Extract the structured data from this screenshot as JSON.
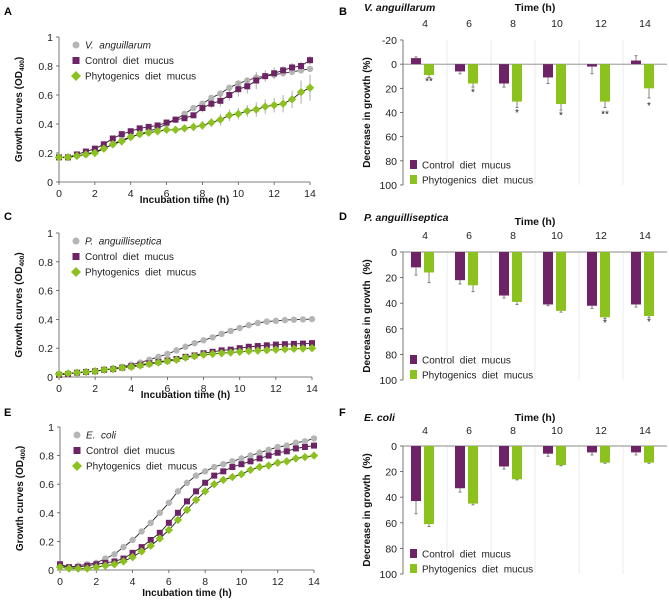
{
  "colors": {
    "pathogen": "#b5b5b5",
    "control": "#6e2366",
    "phytogenics": "#8cc21e",
    "axis": "#555555",
    "line": "#222222",
    "error": "#999999",
    "grid": "#e6e6e6"
  },
  "chart_data": [
    {
      "panel": "A",
      "type": "line",
      "title": "",
      "xlabel": "Incubation time (h)",
      "ylabel": "Growth curves (OD400)",
      "ylabel_main": "Growth curves (OD",
      "ylabel_sub": "400",
      "ylabel_end": ")",
      "xlim": [
        0,
        14
      ],
      "ylim": [
        0,
        1
      ],
      "xticks": [
        0,
        2,
        4,
        6,
        8,
        10,
        12,
        14
      ],
      "yticks": [
        0,
        0.2,
        0.4,
        0.6,
        0.8,
        1
      ],
      "ytick_labels": [
        "0",
        "0.2",
        "0.4",
        "0.6",
        "0.8",
        "1"
      ],
      "legend_position": "top-left",
      "x": [
        0,
        0.5,
        1,
        1.5,
        2,
        2.5,
        3,
        3.5,
        4,
        4.5,
        5,
        5.5,
        6,
        6.5,
        7,
        7.5,
        8,
        8.5,
        9,
        9.5,
        10,
        10.5,
        11,
        11.5,
        12,
        12.5,
        13,
        13.5,
        14
      ],
      "series": [
        {
          "name": "V.  anguillarum",
          "italic": true,
          "marker": "circle",
          "key": "pathogen",
          "values": [
            0.17,
            0.17,
            0.18,
            0.19,
            0.21,
            0.23,
            0.26,
            0.29,
            0.31,
            0.33,
            0.35,
            0.37,
            0.4,
            0.43,
            0.47,
            0.51,
            0.54,
            0.58,
            0.61,
            0.65,
            0.68,
            0.7,
            0.72,
            0.73,
            0.74,
            0.75,
            0.76,
            0.77,
            0.78
          ],
          "errors": [
            0,
            0,
            0,
            0,
            0,
            0,
            0,
            0,
            0,
            0,
            0,
            0,
            0,
            0,
            0,
            0,
            0,
            0,
            0,
            0,
            0,
            0,
            0,
            0,
            0,
            0,
            0,
            0,
            0
          ]
        },
        {
          "name": "Control  diet  mucus",
          "italic": false,
          "marker": "square",
          "key": "control",
          "values": [
            0.17,
            0.17,
            0.19,
            0.21,
            0.23,
            0.26,
            0.3,
            0.33,
            0.35,
            0.37,
            0.38,
            0.39,
            0.41,
            0.43,
            0.44,
            0.46,
            0.51,
            0.54,
            0.56,
            0.6,
            0.64,
            0.66,
            0.7,
            0.73,
            0.75,
            0.77,
            0.79,
            0.8,
            0.84
          ],
          "errors": [
            0,
            0,
            0,
            0,
            0,
            0,
            0,
            0,
            0,
            0,
            0,
            0,
            0,
            0,
            0,
            0.02,
            0.03,
            0.03,
            0.04,
            0.04,
            0.05,
            0.05,
            0.06,
            0.04,
            0.04,
            0.03,
            0.03,
            0.03,
            0.03
          ]
        },
        {
          "name": "Phytogenics  diet  mucus",
          "italic": false,
          "marker": "diamond",
          "key": "phytogenics",
          "values": [
            0.17,
            0.17,
            0.18,
            0.19,
            0.2,
            0.23,
            0.26,
            0.28,
            0.31,
            0.33,
            0.34,
            0.35,
            0.36,
            0.36,
            0.37,
            0.38,
            0.39,
            0.41,
            0.43,
            0.46,
            0.47,
            0.49,
            0.5,
            0.52,
            0.53,
            0.54,
            0.57,
            0.62,
            0.65
          ],
          "errors": [
            0,
            0,
            0,
            0,
            0,
            0,
            0,
            0,
            0,
            0,
            0.01,
            0.01,
            0.02,
            0.02,
            0.02,
            0.03,
            0.03,
            0.03,
            0.04,
            0.04,
            0.04,
            0.04,
            0.05,
            0.05,
            0.05,
            0.06,
            0.06,
            0.08,
            0.09
          ]
        }
      ]
    },
    {
      "panel": "B",
      "type": "bar",
      "subtitle": "V. anguillarum",
      "title": "Time (h)",
      "ylabel": "Decrease in growth (%)",
      "categories": [
        "4",
        "6",
        "8",
        "10",
        "12",
        "14"
      ],
      "ylim": [
        -20,
        100
      ],
      "yticks": [
        -20,
        0,
        20,
        40,
        60,
        80,
        100
      ],
      "ytick_labels": [
        "-20",
        "0",
        "20",
        "40",
        "60",
        "80",
        "100"
      ],
      "legend_position": "bottom-left",
      "series": [
        {
          "name": "Control  diet  mucus",
          "key": "control",
          "values": [
            -5,
            6,
            16,
            11,
            2,
            -3
          ],
          "errors": [
            1,
            2,
            3,
            5,
            6,
            4
          ]
        },
        {
          "name": "Phytogenics  diet  mucus",
          "key": "phytogenics",
          "values": [
            9,
            16,
            31,
            33,
            31,
            20
          ],
          "errors": [
            2,
            3,
            5,
            5,
            5,
            8
          ]
        }
      ],
      "significance": [
        "**",
        "*",
        "*",
        "*",
        "**",
        "*"
      ],
      "significance_values": [
        17,
        26,
        43,
        45,
        44,
        37
      ]
    },
    {
      "panel": "C",
      "type": "line",
      "xlabel": "Incubation time (h)",
      "ylabel": "Growth curves (OD400)",
      "ylabel_main": "Growth curves (OD",
      "ylabel_sub": "400",
      "ylabel_end": ")",
      "xlim": [
        0,
        14
      ],
      "ylim": [
        0,
        1
      ],
      "xticks": [
        0,
        2,
        4,
        6,
        8,
        10,
        12,
        14
      ],
      "yticks": [
        0,
        0.2,
        0.4,
        0.6,
        0.8,
        1
      ],
      "ytick_labels": [
        "0",
        "0.2",
        "0.4",
        "0.6",
        "0.8",
        "1"
      ],
      "legend_position": "top-left",
      "x": [
        0,
        0.5,
        1,
        1.5,
        2,
        2.5,
        3,
        3.5,
        4,
        4.5,
        5,
        5.5,
        6,
        6.5,
        7,
        7.5,
        8,
        8.5,
        9,
        9.5,
        10,
        10.5,
        11,
        11.5,
        12,
        12.5,
        13,
        13.5,
        14
      ],
      "series": [
        {
          "name": "P.  anguilliseptica",
          "italic": true,
          "marker": "circle",
          "key": "pathogen",
          "values": [
            0.02,
            0.025,
            0.03,
            0.035,
            0.04,
            0.05,
            0.06,
            0.07,
            0.085,
            0.1,
            0.12,
            0.14,
            0.16,
            0.185,
            0.21,
            0.235,
            0.255,
            0.275,
            0.3,
            0.32,
            0.34,
            0.36,
            0.375,
            0.385,
            0.39,
            0.395,
            0.398,
            0.4,
            0.402
          ],
          "errors": [
            0,
            0,
            0,
            0,
            0,
            0,
            0,
            0,
            0,
            0,
            0,
            0,
            0,
            0,
            0,
            0,
            0,
            0,
            0,
            0,
            0,
            0,
            0,
            0,
            0,
            0,
            0,
            0,
            0
          ]
        },
        {
          "name": "Control  diet  mucus",
          "italic": false,
          "marker": "square",
          "key": "control",
          "values": [
            0.015,
            0.02,
            0.03,
            0.035,
            0.04,
            0.05,
            0.055,
            0.065,
            0.075,
            0.085,
            0.095,
            0.105,
            0.115,
            0.125,
            0.14,
            0.15,
            0.165,
            0.175,
            0.185,
            0.19,
            0.2,
            0.21,
            0.215,
            0.22,
            0.225,
            0.228,
            0.23,
            0.232,
            0.235
          ],
          "errors": [
            0,
            0,
            0,
            0,
            0,
            0,
            0,
            0,
            0,
            0,
            0,
            0,
            0,
            0,
            0,
            0,
            0,
            0,
            0,
            0,
            0,
            0,
            0,
            0,
            0,
            0,
            0,
            0,
            0
          ]
        },
        {
          "name": "Phytogenics  diet  mucus",
          "italic": false,
          "marker": "diamond",
          "key": "phytogenics",
          "values": [
            0.02,
            0.025,
            0.03,
            0.035,
            0.04,
            0.05,
            0.055,
            0.065,
            0.07,
            0.08,
            0.09,
            0.1,
            0.11,
            0.12,
            0.135,
            0.145,
            0.155,
            0.16,
            0.165,
            0.17,
            0.175,
            0.18,
            0.183,
            0.186,
            0.19,
            0.193,
            0.196,
            0.198,
            0.2
          ],
          "errors": [
            0,
            0,
            0,
            0,
            0,
            0,
            0,
            0,
            0,
            0,
            0,
            0,
            0,
            0,
            0,
            0,
            0,
            0,
            0,
            0,
            0,
            0,
            0,
            0,
            0,
            0,
            0,
            0,
            0
          ]
        }
      ]
    },
    {
      "panel": "D",
      "type": "bar",
      "subtitle": "P. anguilliseptica",
      "title": "Time (h)",
      "ylabel": "Decrease in growth  (%)",
      "categories": [
        "4",
        "6",
        "8",
        "10",
        "12",
        "14"
      ],
      "ylim": [
        0,
        100
      ],
      "yticks": [
        0,
        20,
        40,
        60,
        80,
        100
      ],
      "ytick_labels": [
        "0",
        "20",
        "40",
        "60",
        "80",
        "100"
      ],
      "legend_position": "bottom-left",
      "series": [
        {
          "name": "Control  diet  mucus",
          "key": "control",
          "values": [
            12,
            22,
            34,
            41,
            42,
            41
          ],
          "errors": [
            6,
            3,
            2,
            1,
            2,
            2
          ]
        },
        {
          "name": "Phytogenics  diet  mucus",
          "key": "phytogenics",
          "values": [
            16,
            26,
            39,
            46,
            51,
            50
          ],
          "errors": [
            8,
            5,
            2,
            1,
            1,
            1
          ]
        }
      ],
      "significance": [
        "",
        "",
        "",
        "",
        "*",
        "*"
      ],
      "significance_values": [
        0,
        0,
        0,
        0,
        58,
        57
      ]
    },
    {
      "panel": "E",
      "type": "line",
      "xlabel": "Incubation time (h)",
      "ylabel": "Growth curves (OD400)",
      "ylabel_main": "Growth curves (OD",
      "ylabel_sub": "400",
      "ylabel_end": ")",
      "xlim": [
        0,
        14
      ],
      "ylim": [
        0,
        1
      ],
      "xticks": [
        0,
        2,
        4,
        6,
        8,
        10,
        12,
        14
      ],
      "yticks": [
        0,
        0.2,
        0.4,
        0.6,
        0.8,
        1
      ],
      "ytick_labels": [
        "0",
        "0.2",
        "0.4",
        "0.6",
        "0.8",
        "1"
      ],
      "legend_position": "top-left",
      "x": [
        0,
        0.5,
        1,
        1.5,
        2,
        2.5,
        3,
        3.5,
        4,
        4.5,
        5,
        5.5,
        6,
        6.5,
        7,
        7.5,
        8,
        8.5,
        9,
        9.5,
        10,
        10.5,
        11,
        11.5,
        12,
        12.5,
        13,
        13.5,
        14
      ],
      "series": [
        {
          "name": "E.  coli",
          "italic": true,
          "marker": "circle",
          "key": "pathogen",
          "values": [
            0.03,
            0.02,
            0.03,
            0.04,
            0.05,
            0.08,
            0.11,
            0.16,
            0.21,
            0.27,
            0.33,
            0.4,
            0.47,
            0.55,
            0.61,
            0.66,
            0.69,
            0.72,
            0.74,
            0.76,
            0.78,
            0.8,
            0.82,
            0.84,
            0.86,
            0.87,
            0.89,
            0.9,
            0.92
          ],
          "errors": [
            0,
            0,
            0,
            0,
            0,
            0,
            0,
            0,
            0,
            0,
            0,
            0,
            0,
            0,
            0,
            0,
            0,
            0,
            0,
            0,
            0,
            0,
            0,
            0,
            0,
            0,
            0,
            0,
            0
          ]
        },
        {
          "name": "Control  diet  mucus",
          "italic": false,
          "marker": "square",
          "key": "control",
          "values": [
            0.04,
            0.02,
            0.02,
            0.03,
            0.04,
            0.05,
            0.06,
            0.08,
            0.12,
            0.16,
            0.21,
            0.26,
            0.33,
            0.4,
            0.48,
            0.55,
            0.61,
            0.66,
            0.69,
            0.72,
            0.74,
            0.76,
            0.78,
            0.8,
            0.82,
            0.83,
            0.85,
            0.86,
            0.87
          ],
          "errors": [
            0,
            0,
            0,
            0,
            0,
            0,
            0,
            0,
            0,
            0,
            0,
            0,
            0,
            0,
            0,
            0,
            0,
            0,
            0,
            0,
            0,
            0,
            0,
            0,
            0,
            0,
            0,
            0,
            0
          ]
        },
        {
          "name": "Phytogenics  diet  mucus",
          "italic": false,
          "marker": "diamond",
          "key": "phytogenics",
          "values": [
            0.02,
            0.01,
            0.01,
            0.01,
            0.02,
            0.03,
            0.04,
            0.06,
            0.09,
            0.13,
            0.17,
            0.22,
            0.28,
            0.35,
            0.42,
            0.49,
            0.55,
            0.6,
            0.63,
            0.65,
            0.67,
            0.7,
            0.72,
            0.73,
            0.75,
            0.76,
            0.78,
            0.79,
            0.8
          ],
          "errors": [
            0,
            0,
            0,
            0,
            0,
            0,
            0,
            0,
            0,
            0,
            0,
            0,
            0,
            0,
            0,
            0,
            0,
            0,
            0,
            0,
            0,
            0,
            0,
            0,
            0,
            0,
            0,
            0,
            0
          ]
        }
      ]
    },
    {
      "panel": "F",
      "type": "bar",
      "subtitle": "E. coli",
      "title": "Time (h)",
      "ylabel": "Decrease in growth  (%)",
      "categories": [
        "4",
        "6",
        "8",
        "10",
        "12",
        "14"
      ],
      "ylim": [
        0,
        100
      ],
      "yticks": [
        0,
        20,
        40,
        60,
        80,
        100
      ],
      "ytick_labels": [
        "0",
        "20",
        "40",
        "60",
        "80",
        "100"
      ],
      "legend_position": "bottom-left",
      "series": [
        {
          "name": "Control  diet  mucus",
          "key": "control",
          "values": [
            43,
            33,
            16,
            6,
            5,
            5
          ],
          "errors": [
            10,
            3,
            2,
            2,
            2,
            2
          ]
        },
        {
          "name": "Phytogenics  diet  mucus",
          "key": "phytogenics",
          "values": [
            61,
            45,
            26,
            15,
            13,
            13
          ],
          "errors": [
            2,
            1,
            0.5,
            0.5,
            0.5,
            0.5
          ]
        }
      ],
      "significance": [
        "",
        "",
        "",
        "",
        "",
        ""
      ],
      "significance_values": [
        0,
        0,
        0,
        0,
        0,
        0
      ]
    }
  ]
}
